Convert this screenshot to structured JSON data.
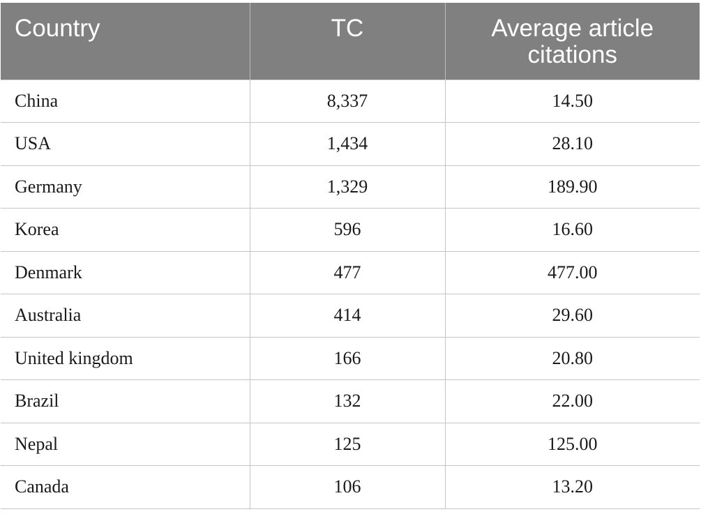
{
  "table": {
    "headers": [
      "Country",
      "TC",
      "Average article citations"
    ],
    "rows": [
      {
        "country": "China",
        "tc": "8,337",
        "avg": "14.50"
      },
      {
        "country": "USA",
        "tc": "1,434",
        "avg": "28.10"
      },
      {
        "country": "Germany",
        "tc": "1,329",
        "avg": "189.90"
      },
      {
        "country": "Korea",
        "tc": "596",
        "avg": "16.60"
      },
      {
        "country": "Denmark",
        "tc": "477",
        "avg": "477.00"
      },
      {
        "country": "Australia",
        "tc": "414",
        "avg": "29.60"
      },
      {
        "country": "United kingdom",
        "tc": "166",
        "avg": "20.80"
      },
      {
        "country": "Brazil",
        "tc": "132",
        "avg": "22.00"
      },
      {
        "country": "Nepal",
        "tc": "125",
        "avg": "125.00"
      },
      {
        "country": "Canada",
        "tc": "106",
        "avg": "13.20"
      }
    ]
  },
  "colors": {
    "header_bg": "#808080",
    "header_text": "#ffffff",
    "grid": "#c4c4c4"
  }
}
